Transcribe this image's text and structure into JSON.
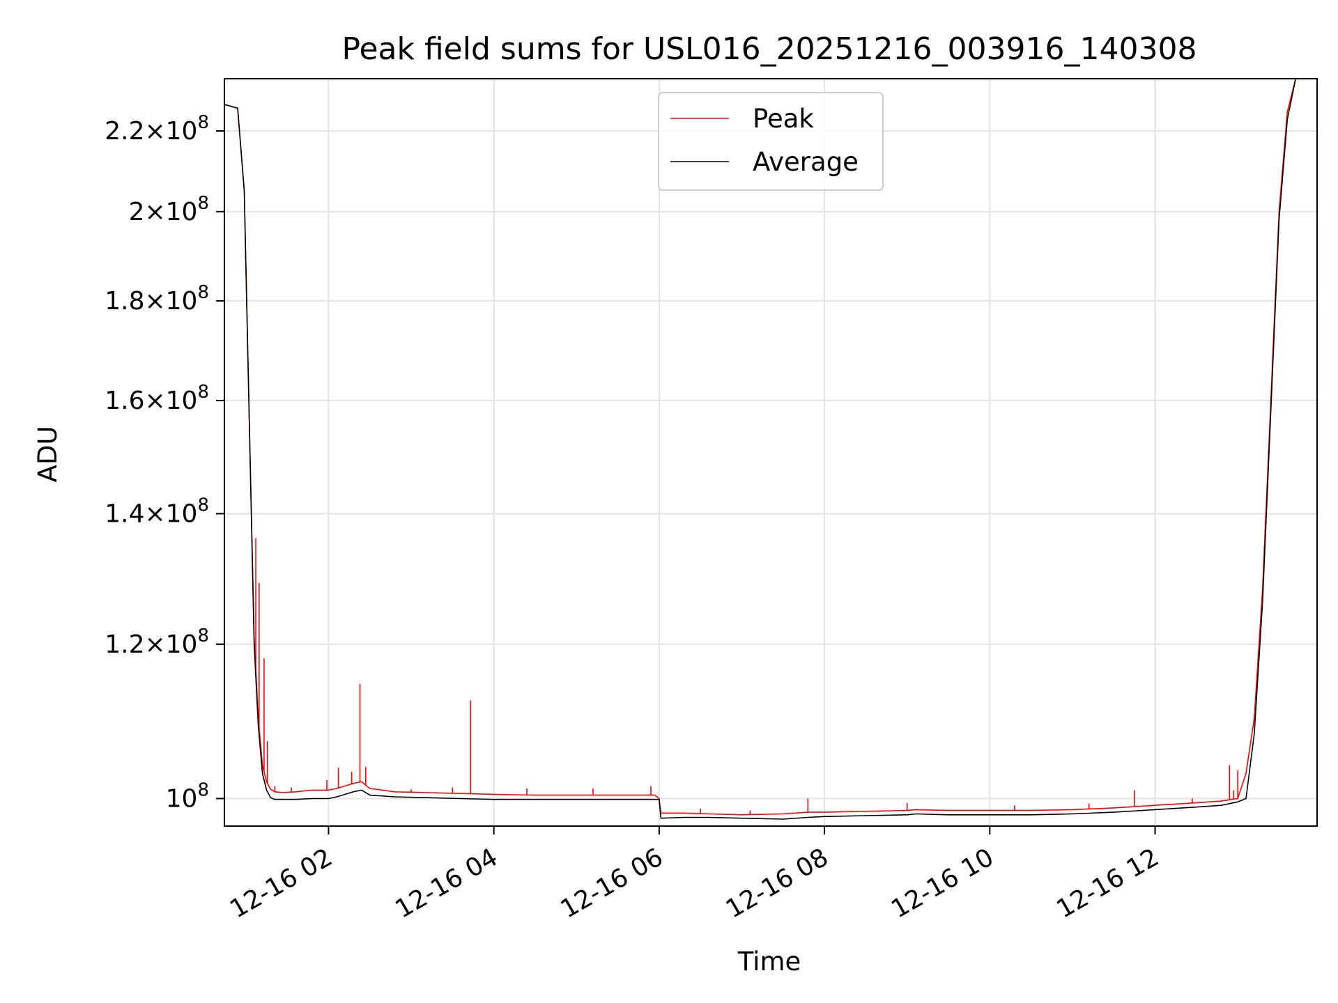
{
  "chart_data": {
    "type": "line",
    "title": "Peak field sums for USL016_20251216_003916_140308",
    "xlabel": "Time",
    "ylabel": "ADU",
    "yscale": "log",
    "grid": true,
    "legend_position": "top-center",
    "x_unit": "hours since 12-16 00:00",
    "xlim": [
      0.74,
      13.96
    ],
    "ylim": [
      96800000.0,
      234000000.0
    ],
    "x_ticks": [
      {
        "value": 2,
        "label": "12-16 02"
      },
      {
        "value": 4,
        "label": "12-16 04"
      },
      {
        "value": 6,
        "label": "12-16 06"
      },
      {
        "value": 8,
        "label": "12-16 08"
      },
      {
        "value": 10,
        "label": "12-16 10"
      },
      {
        "value": 12,
        "label": "12-16 12"
      }
    ],
    "y_ticks": [
      {
        "value": 100000000.0,
        "mantissa": "",
        "exp": "8",
        "base": "10"
      },
      {
        "value": 120000000.0,
        "mantissa": "1.2",
        "exp": "8",
        "base": "10"
      },
      {
        "value": 140000000.0,
        "mantissa": "1.4",
        "exp": "8",
        "base": "10"
      },
      {
        "value": 160000000.0,
        "mantissa": "1.6",
        "exp": "8",
        "base": "10"
      },
      {
        "value": 180000000.0,
        "mantissa": "1.8",
        "exp": "8",
        "base": "10"
      },
      {
        "value": 200000000.0,
        "mantissa": "2",
        "exp": "8",
        "base": "10"
      },
      {
        "value": 220000000.0,
        "mantissa": "2.2",
        "exp": "8",
        "base": "10"
      }
    ],
    "series": [
      {
        "name": "Peak",
        "color": "#ff0000",
        "x": [
          0.74,
          0.9,
          0.98,
          1.05,
          1.1,
          1.15,
          1.2,
          1.25,
          1.3,
          1.35,
          1.45,
          1.6,
          1.8,
          2.0,
          2.1,
          2.2,
          2.3,
          2.4,
          2.5,
          2.8,
          3.2,
          3.6,
          4.0,
          4.5,
          5.0,
          5.5,
          5.95,
          6.0,
          6.02,
          6.3,
          6.6,
          7.0,
          7.5,
          7.8,
          8.0,
          8.5,
          9.0,
          9.1,
          9.5,
          10.0,
          10.5,
          11.0,
          11.5,
          12.0,
          12.5,
          12.8,
          13.0,
          13.1,
          13.2,
          13.3,
          13.4,
          13.5,
          13.6,
          13.7
        ],
        "values": [
          227000000.0,
          226000000.0,
          205000000.0,
          150000000.0,
          121000000.0,
          110000000.0,
          104000000.0,
          102000000.0,
          101100000.0,
          100800000.0,
          100700000.0,
          100800000.0,
          101000000.0,
          101000000.0,
          101200000.0,
          101500000.0,
          101800000.0,
          102000000.0,
          101200000.0,
          100800000.0,
          100700000.0,
          100600000.0,
          100500000.0,
          100400000.0,
          100400000.0,
          100400000.0,
          100400000.0,
          100000000.0,
          98300000.0,
          98300000.0,
          98200000.0,
          98100000.0,
          98200000.0,
          98400000.0,
          98400000.0,
          98500000.0,
          98600000.0,
          98700000.0,
          98600000.0,
          98600000.0,
          98600000.0,
          98700000.0,
          98900000.0,
          99200000.0,
          99500000.0,
          99700000.0,
          100000000.0,
          103000000.0,
          110000000.0,
          128000000.0,
          160000000.0,
          200000000.0,
          225000000.0,
          234000000.0
        ],
        "spikes": [
          {
            "x": 1.12,
            "value": 136000000.0
          },
          {
            "x": 1.16,
            "value": 129000000.0
          },
          {
            "x": 1.22,
            "value": 118000000.0
          },
          {
            "x": 1.26,
            "value": 107000000.0
          },
          {
            "x": 1.35,
            "value": 101500000.0
          },
          {
            "x": 1.55,
            "value": 101300000.0
          },
          {
            "x": 1.98,
            "value": 102200000.0
          },
          {
            "x": 2.12,
            "value": 103700000.0
          },
          {
            "x": 2.28,
            "value": 103200000.0
          },
          {
            "x": 2.38,
            "value": 114500000.0
          },
          {
            "x": 2.45,
            "value": 103800000.0
          },
          {
            "x": 3.0,
            "value": 101100000.0
          },
          {
            "x": 3.5,
            "value": 101300000.0
          },
          {
            "x": 3.72,
            "value": 112300000.0
          },
          {
            "x": 4.4,
            "value": 101200000.0
          },
          {
            "x": 5.2,
            "value": 101200000.0
          },
          {
            "x": 5.9,
            "value": 101500000.0
          },
          {
            "x": 6.5,
            "value": 98800000.0
          },
          {
            "x": 7.1,
            "value": 98600000.0
          },
          {
            "x": 7.8,
            "value": 100000000.0
          },
          {
            "x": 9.0,
            "value": 99500000.0
          },
          {
            "x": 10.3,
            "value": 99200000.0
          },
          {
            "x": 11.2,
            "value": 99400000.0
          },
          {
            "x": 11.75,
            "value": 101000000.0
          },
          {
            "x": 12.45,
            "value": 100000000.0
          },
          {
            "x": 12.9,
            "value": 104000000.0
          },
          {
            "x": 12.95,
            "value": 101000000.0
          },
          {
            "x": 13.0,
            "value": 103400000.0
          }
        ]
      },
      {
        "name": "Average",
        "color": "#000000",
        "x": [
          0.74,
          0.9,
          0.98,
          1.05,
          1.1,
          1.15,
          1.2,
          1.25,
          1.3,
          1.35,
          1.45,
          1.6,
          1.8,
          2.0,
          2.1,
          2.2,
          2.3,
          2.4,
          2.5,
          2.8,
          3.2,
          3.6,
          4.0,
          4.5,
          5.0,
          5.5,
          5.95,
          6.0,
          6.02,
          6.3,
          6.6,
          7.0,
          7.5,
          7.8,
          8.0,
          8.5,
          9.0,
          9.1,
          9.5,
          10.0,
          10.5,
          11.0,
          11.5,
          12.0,
          12.5,
          12.8,
          13.0,
          13.1,
          13.2,
          13.3,
          13.4,
          13.5,
          13.6,
          13.7
        ],
        "values": [
          227000000.0,
          226000000.0,
          205000000.0,
          150000000.0,
          120000000.0,
          109000000.0,
          103000000.0,
          101000000.0,
          100100000.0,
          99900000.0,
          99900000.0,
          99900000.0,
          100000000.0,
          100000000.0,
          100200000.0,
          100500000.0,
          100800000.0,
          101000000.0,
          100400000.0,
          100200000.0,
          100100000.0,
          100000000.0,
          99900000.0,
          99900000.0,
          99900000.0,
          99900000.0,
          99900000.0,
          99900000.0,
          97700000.0,
          97800000.0,
          97800000.0,
          97700000.0,
          97600000.0,
          97800000.0,
          97900000.0,
          98000000.0,
          98100000.0,
          98200000.0,
          98100000.0,
          98100000.0,
          98100000.0,
          98200000.0,
          98400000.0,
          98700000.0,
          99000000.0,
          99200000.0,
          99600000.0,
          100000000.0,
          108000000.0,
          126000000.0,
          158000000.0,
          198000000.0,
          223000000.0,
          234000000.0
        ]
      }
    ]
  }
}
